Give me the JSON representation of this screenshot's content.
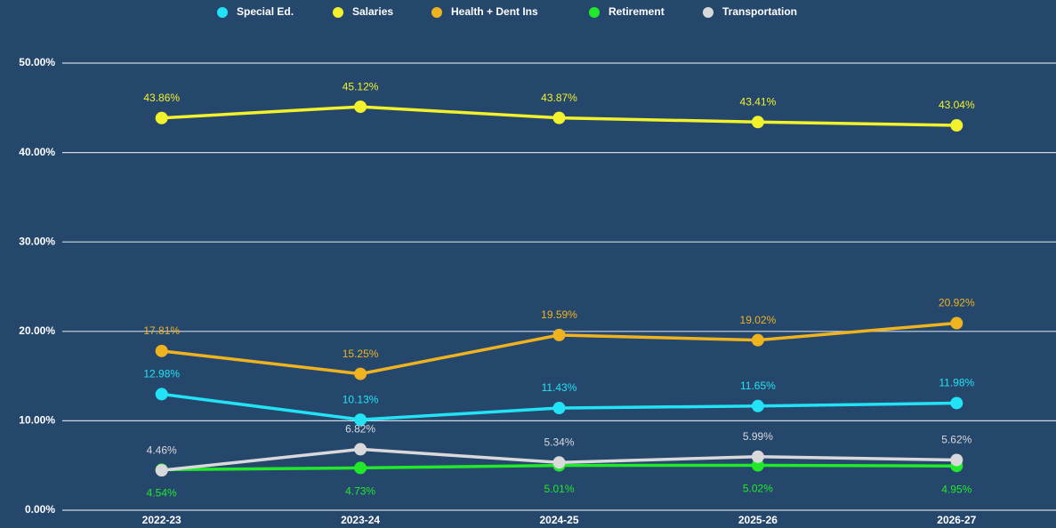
{
  "chart_data": {
    "type": "line",
    "categories": [
      "2022-23",
      "2023-24",
      "2024-25",
      "2025-26",
      "2026-27"
    ],
    "series": [
      {
        "name": "Special Ed.",
        "color": "#22e3f5",
        "values": [
          12.98,
          10.13,
          11.43,
          11.65,
          11.98
        ],
        "value_labels": [
          "12.98%",
          "10.13%",
          "11.43%",
          "11.65%",
          "11.98%"
        ]
      },
      {
        "name": "Salaries",
        "color": "#f2f22c",
        "values": [
          43.86,
          45.12,
          43.87,
          43.41,
          43.04
        ],
        "value_labels": [
          "43.86%",
          "45.12%",
          "43.87%",
          "43.41%",
          "43.04%"
        ]
      },
      {
        "name": "Health + Dent Ins",
        "color": "#efb320",
        "values": [
          17.81,
          15.25,
          19.59,
          19.02,
          20.92
        ],
        "value_labels": [
          "17.81%",
          "15.25%",
          "19.59%",
          "19.02%",
          "20.92%"
        ]
      },
      {
        "name": "Retirement",
        "color": "#22e82a",
        "values": [
          4.54,
          4.73,
          5.01,
          5.02,
          4.95
        ],
        "value_labels": [
          "4.54%",
          "4.73%",
          "5.01%",
          "5.02%",
          "4.95%"
        ]
      },
      {
        "name": "Transportation",
        "color": "#d9d9dc",
        "values": [
          4.46,
          6.82,
          5.34,
          5.99,
          5.62
        ],
        "value_labels": [
          "4.46%",
          "6.82%",
          "5.34%",
          "5.99%",
          "5.62%"
        ]
      }
    ],
    "ylim": [
      0,
      50
    ],
    "yticks": [
      {
        "value": 0,
        "label": "0.00%"
      },
      {
        "value": 10,
        "label": "10.00%"
      },
      {
        "value": 20,
        "label": "20.00%"
      },
      {
        "value": 30,
        "label": "30.00%"
      },
      {
        "value": 40,
        "label": "40.00%"
      },
      {
        "value": 50,
        "label": "50.00%"
      }
    ],
    "grid": true,
    "legend": "top"
  }
}
